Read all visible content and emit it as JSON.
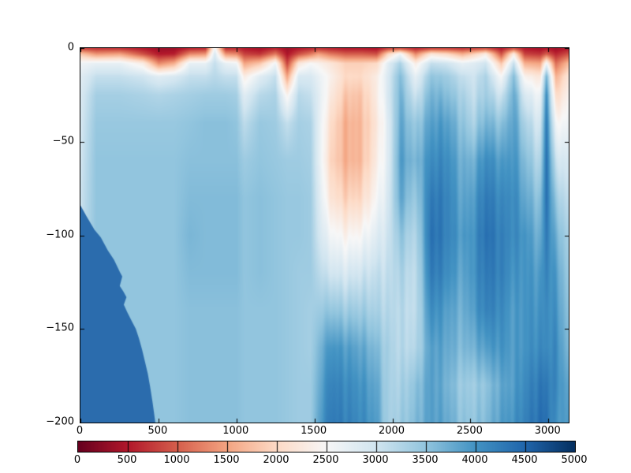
{
  "chart_data": {
    "type": "heatmap",
    "title": "",
    "xlabel": "",
    "ylabel": "",
    "x_range": [
      0,
      3130
    ],
    "y_range": [
      -200,
      0
    ],
    "value_range": [
      0,
      5000
    ],
    "grid_on": false,
    "x_ticks": [
      0,
      500,
      1000,
      1500,
      2000,
      2500,
      3000
    ],
    "x_tick_labels": [
      "0",
      "500",
      "1000",
      "1500",
      "2000",
      "2500",
      "3000"
    ],
    "y_ticks": [
      0,
      -50,
      -100,
      -150,
      -200
    ],
    "y_tick_labels": [
      "0",
      "−50",
      "−100",
      "−150",
      "−200"
    ],
    "colormap": {
      "name": "RdBu",
      "stops": [
        [
          0.0,
          [
            103,
            0,
            31
          ]
        ],
        [
          0.1,
          [
            178,
            24,
            43
          ]
        ],
        [
          0.2,
          [
            214,
            96,
            77
          ]
        ],
        [
          0.3,
          [
            244,
            165,
            130
          ]
        ],
        [
          0.4,
          [
            253,
            219,
            199
          ]
        ],
        [
          0.5,
          [
            247,
            247,
            247
          ]
        ],
        [
          0.6,
          [
            209,
            229,
            240
          ]
        ],
        [
          0.7,
          [
            146,
            197,
            222
          ]
        ],
        [
          0.8,
          [
            67,
            147,
            195
          ]
        ],
        [
          0.9,
          [
            33,
            102,
            172
          ]
        ],
        [
          1.0,
          [
            5,
            48,
            97
          ]
        ]
      ]
    },
    "colorbar": {
      "orientation": "horizontal",
      "position": "bottom",
      "ticks": [
        0,
        500,
        1000,
        1500,
        2000,
        2500,
        3000,
        3500,
        4000,
        4500,
        5000
      ],
      "tick_labels": [
        "0",
        "500",
        "1000",
        "1500",
        "2000",
        "2500",
        "3000",
        "3500",
        "4000",
        "4500",
        "5000"
      ]
    },
    "grid": {
      "x": [
        0,
        100,
        250,
        400,
        500,
        600,
        700,
        800,
        860,
        930,
        1000,
        1050,
        1150,
        1250,
        1325,
        1400,
        1475,
        1525,
        1600,
        1700,
        1800,
        1900,
        1975,
        2050,
        2150,
        2250,
        2350,
        2450,
        2520,
        2600,
        2700,
        2780,
        2850,
        2950,
        2990,
        3050,
        3130
      ],
      "depth": [
        0,
        3,
        8,
        15,
        25,
        40,
        60,
        80,
        100,
        120,
        140,
        160,
        180,
        200
      ],
      "values": [
        [
          800,
          1800,
          2600,
          2800,
          2900,
          2950,
          3000,
          3050,
          3100,
          3100,
          3100,
          3100,
          3100,
          3100
        ],
        [
          700,
          1400,
          2700,
          3100,
          3350,
          3450,
          3500,
          3500,
          3500,
          3500,
          3500,
          3500,
          3500,
          3500
        ],
        [
          700,
          1500,
          2700,
          3100,
          3350,
          3450,
          3500,
          3500,
          3500,
          3500,
          3500,
          3500,
          3500,
          3500
        ],
        [
          500,
          900,
          2300,
          3000,
          3300,
          3450,
          3500,
          3500,
          3500,
          3500,
          3500,
          3500,
          3500,
          3500
        ],
        [
          350,
          500,
          1300,
          2800,
          3250,
          3450,
          3500,
          3500,
          3500,
          3500,
          3500,
          3500,
          3500,
          3500
        ],
        [
          350,
          550,
          1600,
          2900,
          3300,
          3450,
          3500,
          3500,
          3500,
          3500,
          3500,
          3500,
          3500,
          3500
        ],
        [
          600,
          1300,
          2700,
          3100,
          3350,
          3500,
          3550,
          3600,
          3650,
          3600,
          3550,
          3550,
          3550,
          3550
        ],
        [
          650,
          1400,
          2700,
          3100,
          3400,
          3550,
          3550,
          3600,
          3600,
          3600,
          3550,
          3550,
          3550,
          3550
        ],
        [
          2600,
          2900,
          3100,
          3200,
          3400,
          3550,
          3550,
          3600,
          3600,
          3600,
          3550,
          3550,
          3550,
          3550
        ],
        [
          650,
          1400,
          2700,
          3100,
          3400,
          3550,
          3550,
          3600,
          3600,
          3600,
          3550,
          3550,
          3550,
          3550
        ],
        [
          650,
          1300,
          2600,
          3100,
          3350,
          3500,
          3550,
          3600,
          3600,
          3600,
          3550,
          3550,
          3550,
          3550
        ],
        [
          500,
          800,
          1500,
          2300,
          2800,
          3150,
          3400,
          3500,
          3500,
          3500,
          3500,
          3500,
          3500,
          3500
        ],
        [
          400,
          700,
          1800,
          2800,
          3200,
          3450,
          3500,
          3550,
          3550,
          3550,
          3500,
          3500,
          3500,
          3500
        ],
        [
          600,
          1200,
          2600,
          3100,
          3300,
          3400,
          3450,
          3500,
          3500,
          3500,
          3500,
          3500,
          3500,
          3500
        ],
        [
          350,
          450,
          800,
          1500,
          2400,
          3100,
          3400,
          3450,
          3450,
          3450,
          3450,
          3450,
          3450,
          3450
        ],
        [
          500,
          900,
          2200,
          2900,
          3200,
          3350,
          3400,
          3450,
          3450,
          3400,
          3400,
          3400,
          3400,
          3400
        ],
        [
          600,
          1200,
          2500,
          2900,
          3100,
          3300,
          3350,
          3400,
          3400,
          3400,
          3350,
          3350,
          3400,
          3400
        ],
        [
          700,
          1500,
          2400,
          2700,
          2800,
          2800,
          2800,
          2900,
          3000,
          3200,
          3400,
          3600,
          3700,
          3800
        ],
        [
          600,
          1200,
          2200,
          2400,
          2300,
          2100,
          2000,
          2200,
          2600,
          3000,
          3500,
          4000,
          4200,
          4300
        ],
        [
          500,
          1000,
          1900,
          2000,
          1800,
          1600,
          1600,
          1900,
          2400,
          2900,
          3400,
          3900,
          4100,
          4200
        ],
        [
          500,
          1000,
          1900,
          2000,
          1800,
          1700,
          1700,
          2000,
          2500,
          3000,
          3400,
          3800,
          4000,
          4100
        ],
        [
          450,
          900,
          2000,
          2300,
          2300,
          2200,
          2300,
          2500,
          2800,
          3100,
          3300,
          3600,
          3800,
          3900
        ],
        [
          800,
          2000,
          2800,
          2900,
          2900,
          2800,
          2800,
          2900,
          3000,
          3100,
          3200,
          3300,
          3300,
          3300
        ],
        [
          900,
          2600,
          3300,
          3600,
          3700,
          3800,
          3900,
          3800,
          3500,
          3300,
          3200,
          3200,
          3300,
          3400
        ],
        [
          600,
          1300,
          2300,
          2700,
          3000,
          3400,
          3600,
          3400,
          3200,
          3100,
          3100,
          3200,
          3500,
          3600
        ],
        [
          800,
          2200,
          3100,
          3500,
          3700,
          3900,
          4100,
          4300,
          4400,
          4300,
          4100,
          3900,
          3900,
          3900
        ],
        [
          800,
          2000,
          3000,
          3400,
          3600,
          3900,
          4100,
          4200,
          4200,
          4100,
          3900,
          3800,
          3700,
          3800
        ],
        [
          700,
          1600,
          2700,
          3100,
          3300,
          3500,
          3700,
          3800,
          3900,
          3800,
          3700,
          3600,
          3400,
          3500
        ],
        [
          800,
          1900,
          2800,
          3000,
          3100,
          3300,
          3700,
          3900,
          4000,
          4000,
          3900,
          3700,
          3400,
          3500
        ],
        [
          900,
          2300,
          3000,
          3300,
          3400,
          3700,
          4100,
          4300,
          4400,
          4300,
          4200,
          3900,
          3500,
          3600
        ],
        [
          500,
          900,
          1800,
          2500,
          3000,
          3500,
          3900,
          4100,
          4200,
          4200,
          4100,
          4000,
          3800,
          3900
        ],
        [
          900,
          2300,
          3100,
          3600,
          3800,
          3900,
          4000,
          4100,
          4100,
          4000,
          3900,
          3900,
          3900,
          4000
        ],
        [
          500,
          800,
          1600,
          2400,
          2900,
          3300,
          3600,
          3800,
          4000,
          4000,
          4000,
          4000,
          4100,
          4200
        ],
        [
          400,
          700,
          1500,
          2200,
          2600,
          2900,
          3200,
          3500,
          3700,
          3900,
          4000,
          4100,
          4300,
          4400
        ],
        [
          500,
          1000,
          2600,
          3700,
          4100,
          4300,
          4400,
          4400,
          4300,
          4200,
          4100,
          4100,
          4300,
          4400
        ],
        [
          350,
          600,
          1100,
          1600,
          2000,
          2500,
          3000,
          3400,
          3700,
          3900,
          4000,
          4100,
          4100,
          4000
        ],
        [
          500,
          900,
          1700,
          2200,
          2400,
          2600,
          2900,
          3100,
          3300,
          3400,
          3500,
          3600,
          3800,
          3900
        ]
      ]
    },
    "deep_wedge": {
      "value": 4360,
      "color": "#2b6cad",
      "boundary": [
        [
          0,
          -84
        ],
        [
          40,
          -90
        ],
        [
          90,
          -97
        ],
        [
          130,
          -101
        ],
        [
          175,
          -108
        ],
        [
          215,
          -113
        ],
        [
          255,
          -120
        ],
        [
          268,
          -122
        ],
        [
          252,
          -127
        ],
        [
          275,
          -130
        ],
        [
          295,
          -133
        ],
        [
          278,
          -137
        ],
        [
          300,
          -141
        ],
        [
          330,
          -146
        ],
        [
          355,
          -150
        ],
        [
          375,
          -155
        ],
        [
          395,
          -161
        ],
        [
          415,
          -168
        ],
        [
          432,
          -174
        ],
        [
          447,
          -181
        ],
        [
          462,
          -189
        ],
        [
          472,
          -195
        ],
        [
          480,
          -200
        ],
        [
          0,
          -200
        ]
      ]
    }
  }
}
